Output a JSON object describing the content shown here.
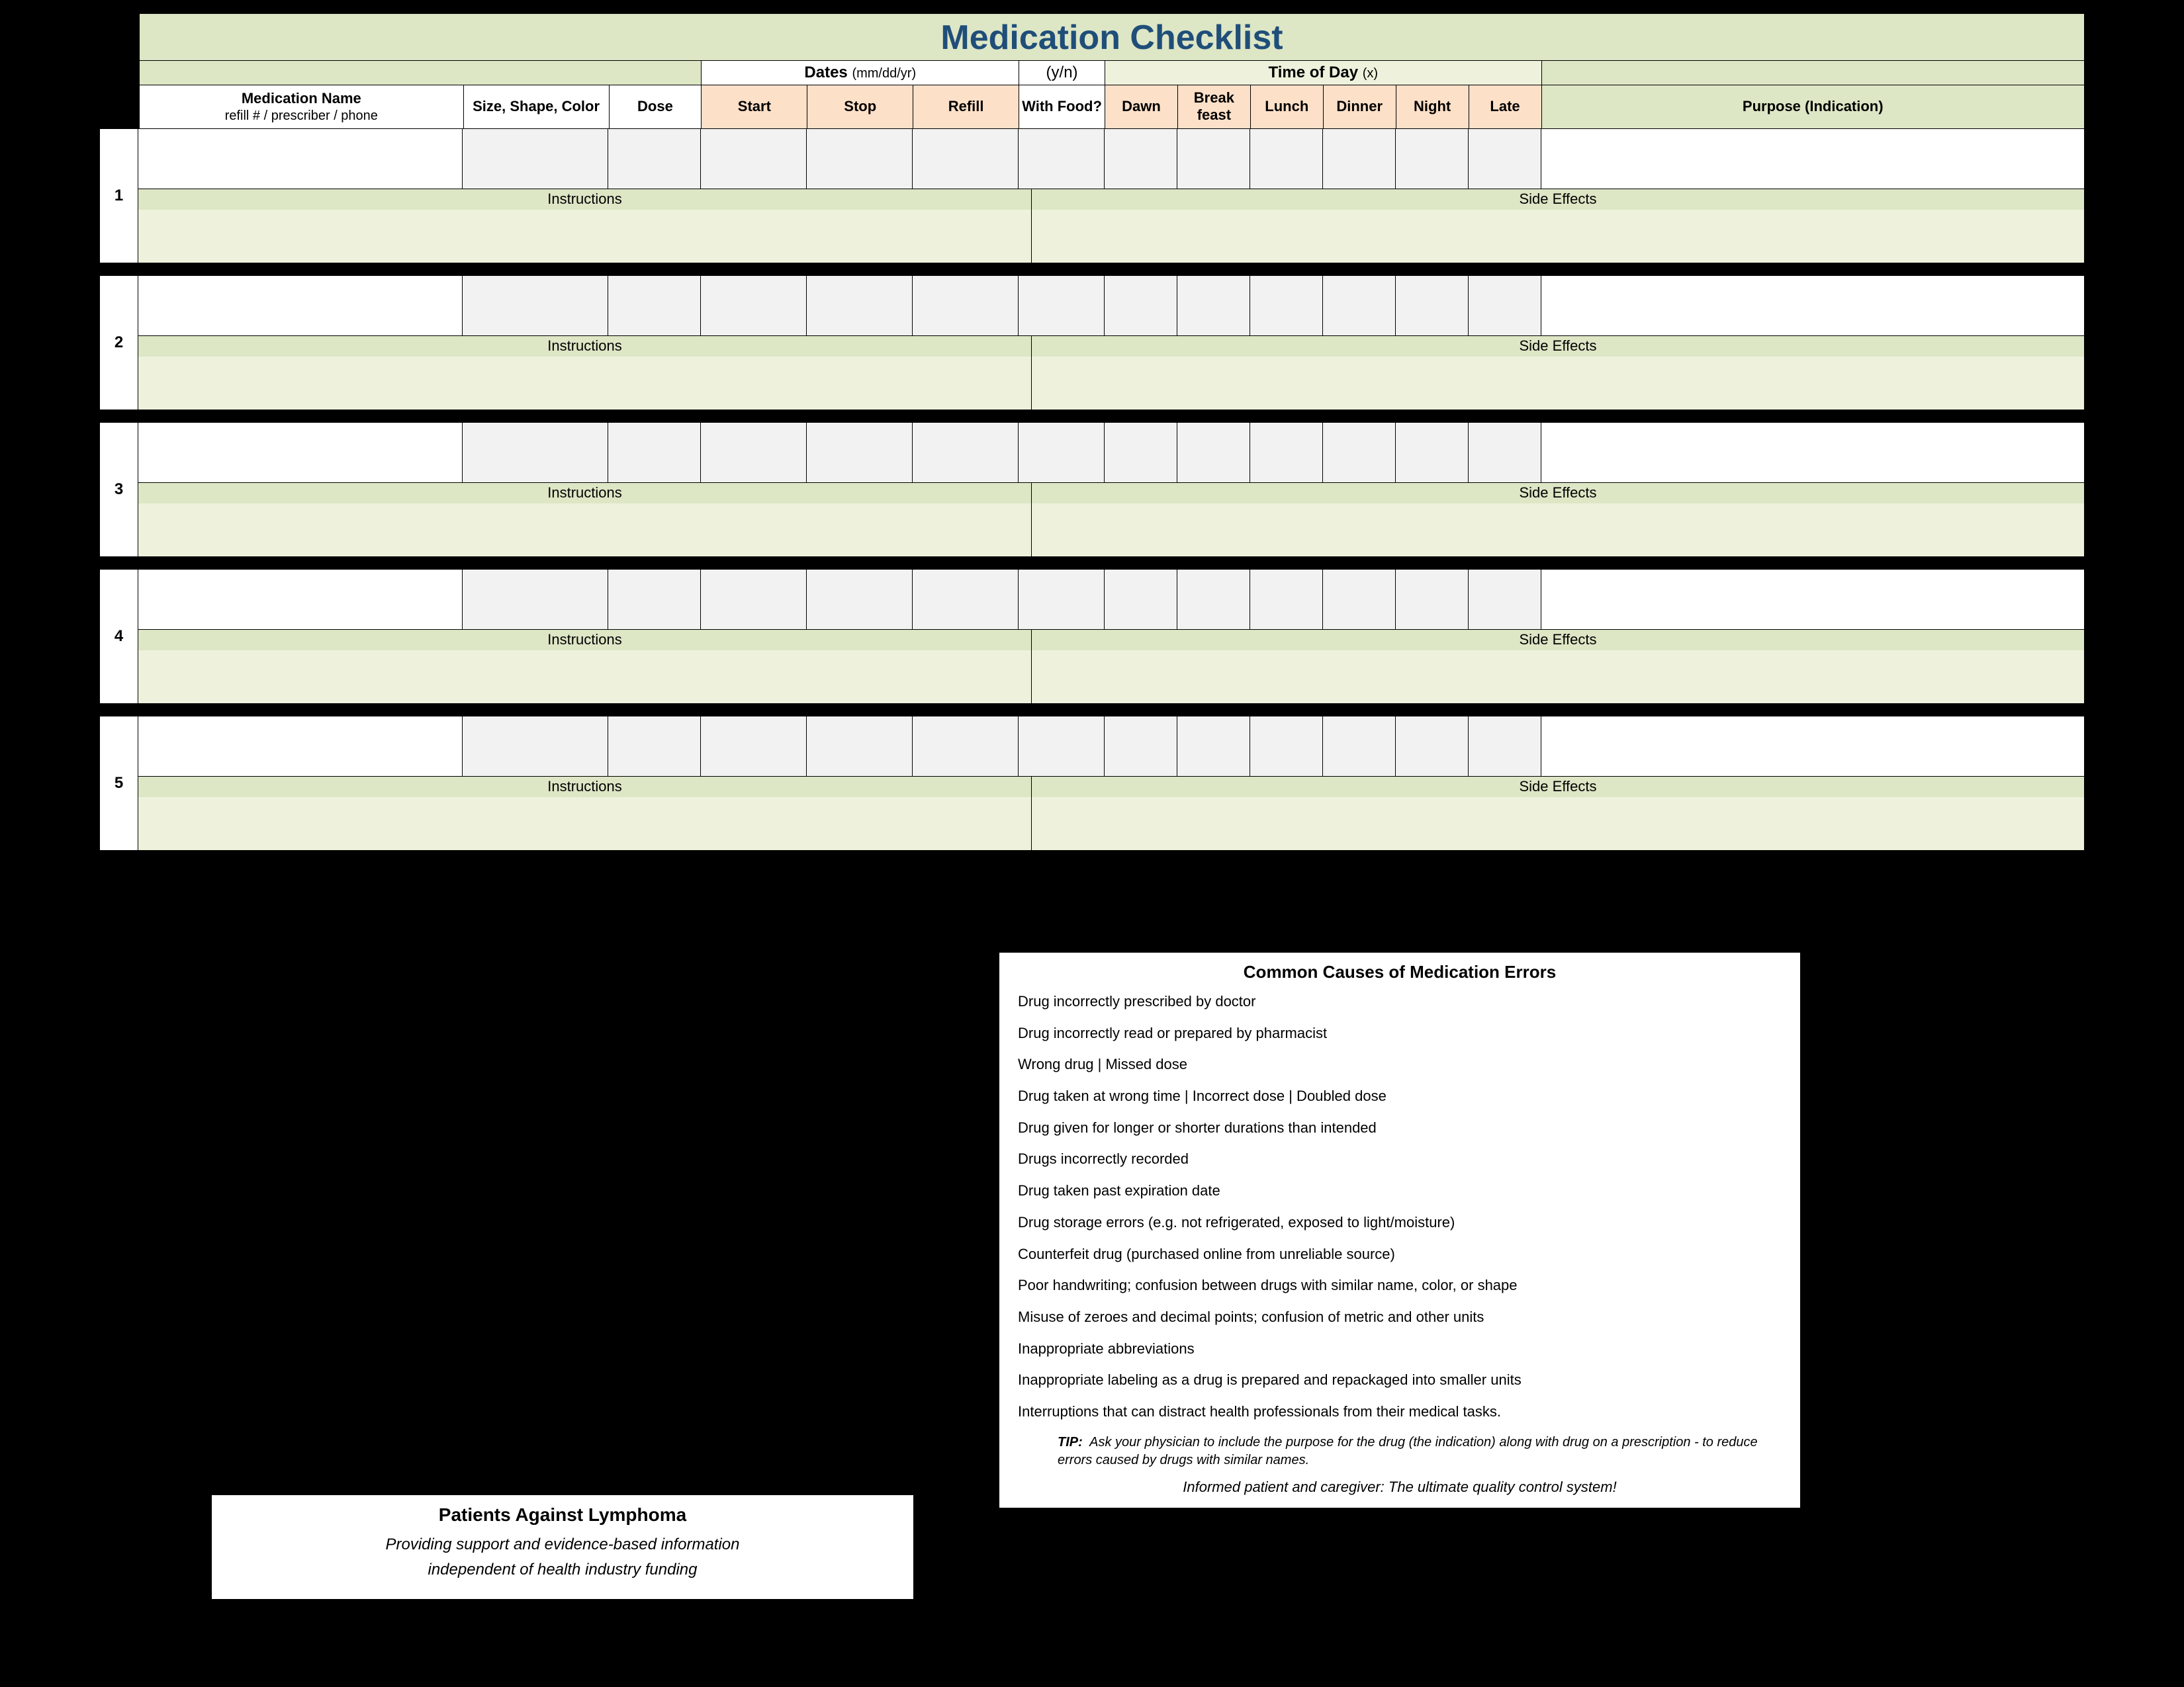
{
  "title": "Medication Checklist",
  "spans": {
    "dates_label": "Dates",
    "dates_hint": "(mm/dd/yr)",
    "yn": "(y/n)",
    "tod_label": "Time of Day",
    "tod_hint": "(x)"
  },
  "headers": {
    "name": "Medication Name",
    "name_sub": "refill # / prescriber / phone",
    "shape": "Size, Shape, Color",
    "dose": "Dose",
    "start": "Start",
    "stop": "Stop",
    "refill": "Refill",
    "food": "With Food?",
    "dawn": "Dawn",
    "break": "Break feast",
    "lunch": "Lunch",
    "dinner": "Dinner",
    "night": "Night",
    "late": "Late",
    "purpose": "Purpose (Indication)"
  },
  "row_labels": {
    "instructions": "Instructions",
    "side_effects": "Side Effects"
  },
  "rows": [
    "1",
    "2",
    "3",
    "4",
    "5"
  ],
  "colors": {
    "olive": "#dde6c5",
    "olive_light": "#eef2dd",
    "peach": "#fde0c8",
    "grey": "#f2f2f2",
    "title": "#1f4e79"
  },
  "errors": {
    "title": "Common Causes of Medication Errors",
    "items": [
      "Drug incorrectly prescribed by doctor",
      "Drug incorrectly read or prepared by pharmacist",
      "Wrong drug  | Missed dose",
      "Drug taken at wrong time | Incorrect dose | Doubled dose",
      "Drug given for longer or shorter durations than intended",
      "Drugs incorrectly recorded",
      "Drug taken past expiration date",
      "Drug storage errors (e.g. not refrigerated, exposed to light/moisture)",
      "Counterfeit drug  (purchased online from unreliable source)",
      "Poor handwriting; confusion between drugs with similar name, color, or shape",
      "Misuse of zeroes and decimal points; confusion of metric and other units",
      "Inappropriate abbreviations",
      "Inappropriate labeling as a drug is prepared and repackaged into smaller units",
      "Interruptions that can distract health professionals from their medical tasks."
    ],
    "tip_label": "TIP:",
    "tip_text": "Ask your physician to include the purpose for the drug (the indication) along with drug on a prescription - to reduce errors caused by drugs with similar names.",
    "informed": "Informed patient and caregiver:  The ultimate quality control system!"
  },
  "org": {
    "name": "Patients Against Lymphoma",
    "line1": "Providing support and evidence-based information",
    "line2": "independent of health industry funding"
  }
}
